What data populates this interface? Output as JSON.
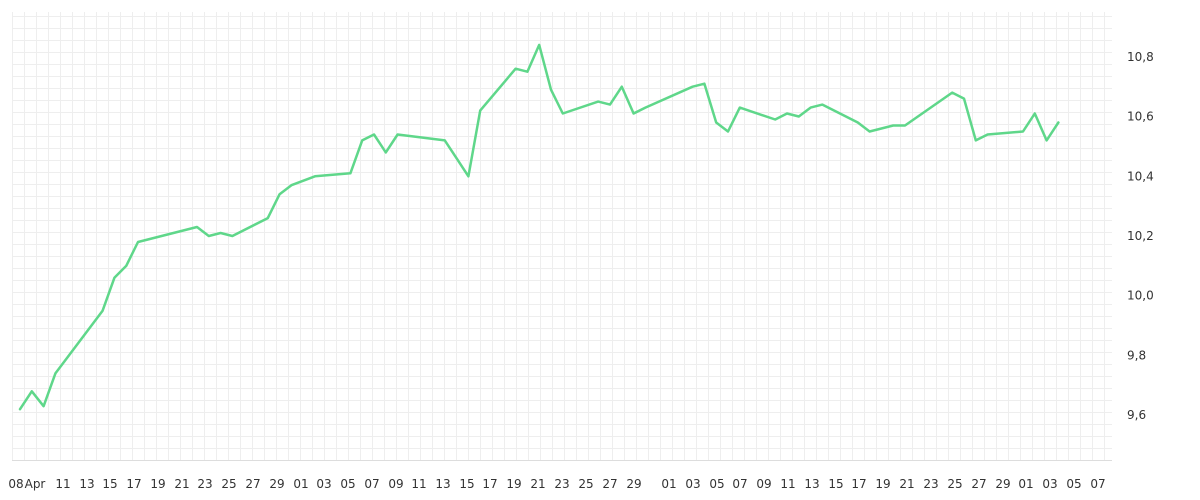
{
  "chart_data": {
    "type": "line",
    "title": "",
    "xlabel": "",
    "ylabel": "",
    "x_tick_labels": [
      "08",
      "Apr",
      "11",
      "13",
      "15",
      "17",
      "19",
      "21",
      "23",
      "25",
      "27",
      "29",
      "01",
      "03",
      "05",
      "07",
      "09",
      "11",
      "13",
      "15",
      "17",
      "19",
      "21",
      "23",
      "25",
      "27",
      "29",
      "01",
      "03",
      "05",
      "07",
      "09",
      "11",
      "13",
      "15",
      "17",
      "19",
      "21",
      "23",
      "25",
      "27",
      "29",
      "01",
      "03",
      "05",
      "07"
    ],
    "y_tick_labels": [
      "9,6",
      "9,8",
      "10,0",
      "10,2",
      "10,4",
      "10,6",
      "10,8"
    ],
    "ylim": [
      9.45,
      10.95
    ],
    "grid": true,
    "line_color": "#5fd78a",
    "series": [
      {
        "x": [
          "08 Apr",
          "09 Apr",
          "10 Apr",
          "11 Apr",
          "15 Apr",
          "16 Apr",
          "17 Apr",
          "18 Apr",
          "23 Apr",
          "24 Apr",
          "25 Apr",
          "26 Apr",
          "29 Apr",
          "30 Apr",
          "01 May",
          "03 May",
          "06 May",
          "07 May",
          "08 May",
          "09 May",
          "10 May",
          "14 May",
          "15 May",
          "16 May",
          "17 May",
          "20 May",
          "21 May",
          "22 May",
          "23 May",
          "24 May",
          "27 May",
          "28 May",
          "29 May",
          "30 May",
          "31 May",
          "04 Jun",
          "05 Jun",
          "06 Jun",
          "07 Jun",
          "08 Jun",
          "11 Jun",
          "12 Jun",
          "13 Jun",
          "14 Jun",
          "15 Jun",
          "18 Jun",
          "19 Jun",
          "20 Jun",
          "21 Jun",
          "22 Jun",
          "26 Jun",
          "27 Jun",
          "28 Jun",
          "29 Jun",
          "02 Jul",
          "03 Jul",
          "04 Jul",
          "05 Jul"
        ],
        "values": [
          9.62,
          9.68,
          9.63,
          9.74,
          9.95,
          10.06,
          10.1,
          10.18,
          10.23,
          10.2,
          10.21,
          10.2,
          10.26,
          10.34,
          10.37,
          10.4,
          10.41,
          10.52,
          10.54,
          10.48,
          10.54,
          10.52,
          10.46,
          10.4,
          10.62,
          10.76,
          10.75,
          10.84,
          10.69,
          10.61,
          10.65,
          10.64,
          10.7,
          10.61,
          10.63,
          10.7,
          10.71,
          10.58,
          10.55,
          10.63,
          10.59,
          10.61,
          10.6,
          10.63,
          10.64,
          10.58,
          10.55,
          10.56,
          10.57,
          10.57,
          10.68,
          10.66,
          10.52,
          10.54,
          10.55,
          10.61,
          10.52,
          10.58
        ]
      }
    ]
  }
}
